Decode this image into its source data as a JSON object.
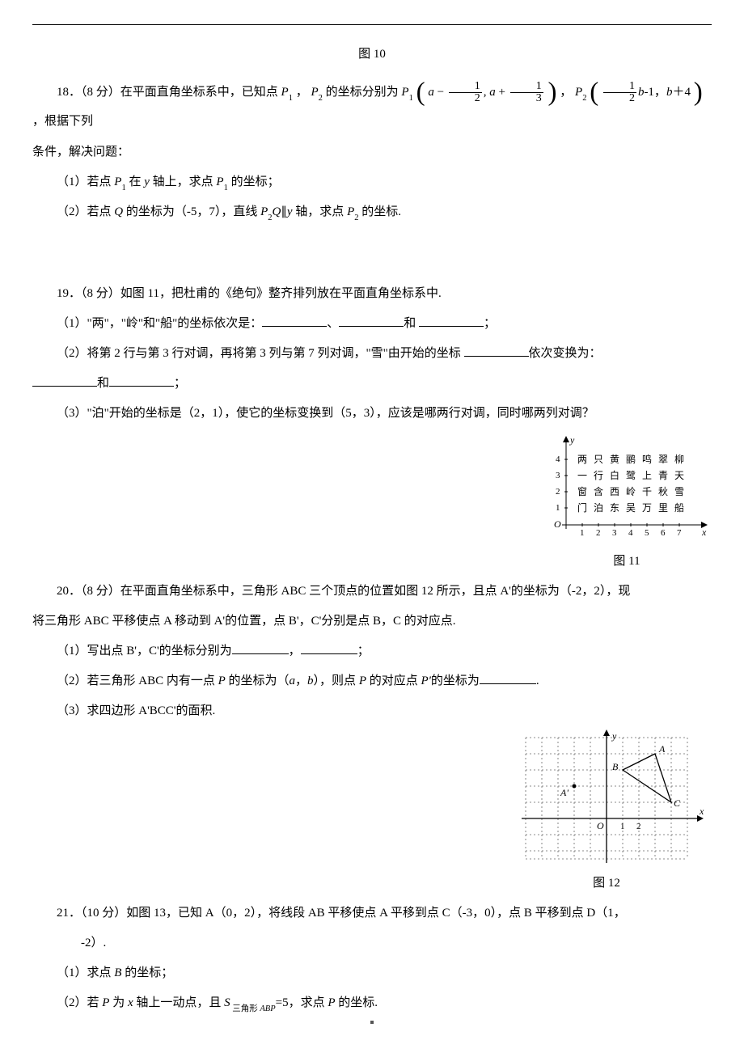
{
  "fig10_label": "图 10",
  "q18": {
    "intro_a": "18．（8 分）在平面直角坐标系中，已知点 ",
    "p1": "P",
    "p1sub": "1",
    "p2": "P",
    "p2sub": "2",
    "mid_a": "，",
    "mid_b": " 的坐标分别为 ",
    "comma": "，",
    "tail": "，根据下列",
    "line2": "条件，解决问题：",
    "part1": "（1）若点 ",
    "part1_mid": " 在 ",
    "y_axis": "y",
    "part1_mid2": " 轴上，求点 ",
    "part1_end": " 的坐标；",
    "part2_a": "（2）若点 ",
    "Q": "Q",
    "part2_b": " 的坐标为（-5，7），直线 ",
    "parallel": "∥",
    "part2_c": " 轴，求点 ",
    "part2_end": " 的坐标.",
    "frac_a": "a",
    "frac_half_n": "1",
    "frac_half_d": "2",
    "frac_third_n": "1",
    "frac_third_d": "3",
    "frac_b": "b",
    "plus4": "b＋4",
    "c_m1": "-1，",
    "y": "y"
  },
  "q19": {
    "intro": "19．（8 分）如图 11，把杜甫的《绝句》整齐排列放在平面直角坐标系中.",
    "p1_a": "（1）\"两\"，\"岭\"和\"船\"的坐标依次是：",
    "sep1": "、",
    "sep2": "和",
    "end1": "；",
    "p2_a": "（2）将第 2 行与第 3 行对调，再将第 3 列与第 7 列对调，\"雪\"由开始的坐标 ",
    "p2_b": "依次变换为：",
    "p2_c": "和",
    "p2_end": "；",
    "p3": "（3）\"泊\"开始的坐标是（2，1），使它的坐标变换到（5，3），应该是哪两行对调，同时哪两列对调？",
    "poem": [
      [
        "两",
        "只",
        "黄",
        "鹂",
        "鸣",
        "翠",
        "柳"
      ],
      [
        "一",
        "行",
        "白",
        "鹭",
        "上",
        "青",
        "天"
      ],
      [
        "窗",
        "含",
        "西",
        "岭",
        "千",
        "秋",
        "雪"
      ],
      [
        "门",
        "泊",
        "东",
        "吴",
        "万",
        "里",
        "船"
      ]
    ],
    "fig_label": "图 11",
    "x": "x",
    "y": "y",
    "O": "O"
  },
  "q20": {
    "intro_a": "20．（8 分）在平面直角坐标系中，三角形 ABC 三个顶点的位置如图 12 所示，且点 A'的坐标为（-2，2），现",
    "intro_b": "将三角形 ABC 平移使点 A 移动到 A'的位置，点 B'，C'分别是点 B，C 的对应点.",
    "p1_a": "（1）写出点 B'，C'的坐标分别为",
    "p1_sep": "，",
    "p1_end": "；",
    "p2_a": "（2）若三角形 ABC 内有一点 ",
    "P": "P",
    "p2_b": " 的坐标为（",
    "a": "a",
    "b": "b",
    "p2_c": "，",
    "p2_d": "），则点 ",
    "p2_e": " 的对应点 ",
    "Pp": "P'",
    "p2_f": "的坐标为",
    "p2_end": ".",
    "p3": "（3）求四边形 A'BCC'的面积.",
    "fig_label": "图 12",
    "labels": {
      "A": "A",
      "B": "B",
      "C": "C",
      "Ap": "A'",
      "O": "O",
      "x": "x",
      "y": "y",
      "t1": "1",
      "t2": "2"
    }
  },
  "q21": {
    "intro_a": "21．（10 分）如图 13，已知 A（0，2），将线段 AB 平移使点 A 平移到点 C（-3，0），点 B 平移到点 D（1，",
    "intro_b": "-2）.",
    "p1_a": "（1）求点 ",
    "B": "B",
    "p1_b": " 的坐标；",
    "p2_a": "（2）若 ",
    "P": "P",
    "p2_b": " 为 ",
    "x": "x",
    "p2_c": " 轴上一动点，且 ",
    "S": "S",
    "tri": " 三角形 ",
    "ABP": "ABP",
    "p2_d": "=5，求点 ",
    "p2_e": " 的坐标."
  }
}
